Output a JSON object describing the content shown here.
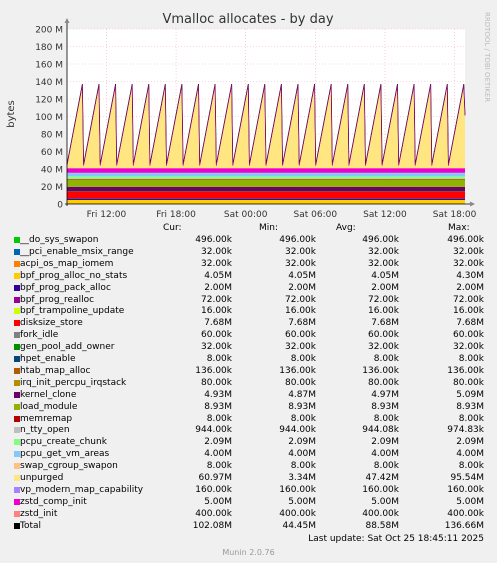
{
  "chart_data": {
    "type": "area",
    "title": "Vmalloc allocates - by day",
    "ylabel": "bytes",
    "side_label": "RRDTOOL / TOBI OETIKER",
    "ylim": [
      0,
      200000000
    ],
    "yticks": [
      0,
      20000000,
      40000000,
      60000000,
      80000000,
      100000000,
      120000000,
      140000000,
      160000000,
      180000000,
      200000000
    ],
    "ytick_labels": [
      "0",
      "20 M",
      "40 M",
      "60 M",
      "80 M",
      "100 M",
      "120 M",
      "140 M",
      "160 M",
      "180 M",
      "200 M"
    ],
    "x_range_hours": [
      8.6,
      42.9
    ],
    "xticks": [
      12,
      18,
      24,
      30,
      36,
      42
    ],
    "xtick_labels": [
      "Fri 12:00",
      "Fri 18:00",
      "Sat 00:00",
      "Sat 06:00",
      "Sat 12:00",
      "Sat 18:00"
    ],
    "grid": true,
    "sawtooth": {
      "cycles": 24,
      "low": 45000000,
      "high": 137000000
    },
    "columns": [
      "Cur:",
      "Min:",
      "Avg:",
      "Max:"
    ],
    "series": [
      {
        "name": "__do_sys_swapon",
        "color": "#00cc00",
        "cur": "496.00k",
        "min": "496.00k",
        "avg": "496.00k",
        "max": "496.00k",
        "value": 496000
      },
      {
        "name": "__pci_enable_msix_range",
        "color": "#0066b3",
        "cur": "32.00k",
        "min": "32.00k",
        "avg": "32.00k",
        "max": "32.00k",
        "value": 32000
      },
      {
        "name": "acpi_os_map_iomem",
        "color": "#ff8000",
        "cur": "32.00k",
        "min": "32.00k",
        "avg": "32.00k",
        "max": "32.00k",
        "value": 32000
      },
      {
        "name": "bpf_prog_alloc_no_stats",
        "color": "#ffcc00",
        "cur": "4.05M",
        "min": "4.05M",
        "avg": "4.05M",
        "max": "4.30M",
        "value": 4050000
      },
      {
        "name": "bpf_prog_pack_alloc",
        "color": "#330099",
        "cur": "2.00M",
        "min": "2.00M",
        "avg": "2.00M",
        "max": "2.00M",
        "value": 2000000
      },
      {
        "name": "bpf_prog_realloc",
        "color": "#990099",
        "cur": "72.00k",
        "min": "72.00k",
        "avg": "72.00k",
        "max": "72.00k",
        "value": 72000
      },
      {
        "name": "bpf_trampoline_update",
        "color": "#ccff00",
        "cur": "16.00k",
        "min": "16.00k",
        "avg": "16.00k",
        "max": "16.00k",
        "value": 16000
      },
      {
        "name": "disksize_store",
        "color": "#ff0000",
        "cur": "7.68M",
        "min": "7.68M",
        "avg": "7.68M",
        "max": "7.68M",
        "value": 7680000
      },
      {
        "name": "fork_idle",
        "color": "#808080",
        "cur": "60.00k",
        "min": "60.00k",
        "avg": "60.00k",
        "max": "60.00k",
        "value": 60000
      },
      {
        "name": "gen_pool_add_owner",
        "color": "#008f00",
        "cur": "32.00k",
        "min": "32.00k",
        "avg": "32.00k",
        "max": "32.00k",
        "value": 32000
      },
      {
        "name": "hpet_enable",
        "color": "#00487d",
        "cur": "8.00k",
        "min": "8.00k",
        "avg": "8.00k",
        "max": "8.00k",
        "value": 8000
      },
      {
        "name": "htab_map_alloc",
        "color": "#b35a00",
        "cur": "136.00k",
        "min": "136.00k",
        "avg": "136.00k",
        "max": "136.00k",
        "value": 136000
      },
      {
        "name": "irq_init_percpu_irqstack",
        "color": "#b38f00",
        "cur": "80.00k",
        "min": "80.00k",
        "avg": "80.00k",
        "max": "80.00k",
        "value": 80000
      },
      {
        "name": "kernel_clone",
        "color": "#6b006b",
        "cur": "4.93M",
        "min": "4.87M",
        "avg": "4.97M",
        "max": "5.09M",
        "value": 4930000
      },
      {
        "name": "load_module",
        "color": "#8fb300",
        "cur": "8.93M",
        "min": "8.93M",
        "avg": "8.93M",
        "max": "8.93M",
        "value": 8930000
      },
      {
        "name": "memremap",
        "color": "#b30000",
        "cur": "8.00k",
        "min": "8.00k",
        "avg": "8.00k",
        "max": "8.00k",
        "value": 8000
      },
      {
        "name": "n_tty_open",
        "color": "#bebebe",
        "cur": "944.00k",
        "min": "944.00k",
        "avg": "944.08k",
        "max": "974.83k",
        "value": 944000
      },
      {
        "name": "pcpu_create_chunk",
        "color": "#80ff80",
        "cur": "2.09M",
        "min": "2.09M",
        "avg": "2.09M",
        "max": "2.09M",
        "value": 2090000
      },
      {
        "name": "pcpu_get_vm_areas",
        "color": "#80c9ff",
        "cur": "4.00M",
        "min": "4.00M",
        "avg": "4.00M",
        "max": "4.00M",
        "value": 4000000
      },
      {
        "name": "swap_cgroup_swapon",
        "color": "#ffc080",
        "cur": "8.00k",
        "min": "8.00k",
        "avg": "8.00k",
        "max": "8.00k",
        "value": 8000
      },
      {
        "name": "unpurged",
        "color": "#ffe680",
        "cur": "60.97M",
        "min": "3.34M",
        "avg": "47.42M",
        "max": "95.54M",
        "value": 60970000
      },
      {
        "name": "vp_modern_map_capability",
        "color": "#aa80ff",
        "cur": "160.00k",
        "min": "160.00k",
        "avg": "160.00k",
        "max": "160.00k",
        "value": 160000
      },
      {
        "name": "zstd_comp_init",
        "color": "#ee00cc",
        "cur": "5.00M",
        "min": "5.00M",
        "avg": "5.00M",
        "max": "5.00M",
        "value": 5000000
      },
      {
        "name": "zstd_init",
        "color": "#ff8080",
        "cur": "400.00k",
        "min": "400.00k",
        "avg": "400.00k",
        "max": "400.00k",
        "value": 400000
      },
      {
        "name": "Total",
        "color": "#000000",
        "cur": "102.08M",
        "min": "44.45M",
        "avg": "88.58M",
        "max": "136.66M",
        "value": 102080000
      }
    ]
  },
  "footer": {
    "last_update": "Last update: Sat Oct 25 18:45:11 2025",
    "version": "Munin 2.0.76"
  }
}
